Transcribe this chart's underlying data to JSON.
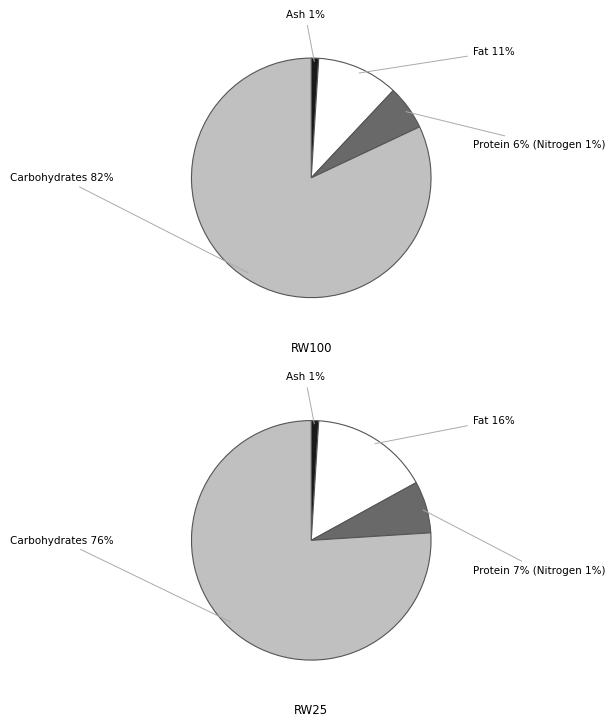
{
  "chart1": {
    "label": "RW100",
    "slices": [
      "Ash",
      "Fat",
      "Protein",
      "Carbohydrates"
    ],
    "values": [
      1,
      11,
      6,
      82
    ],
    "colors": [
      "#1a1a1a",
      "#ffffff",
      "#696969",
      "#c0c0c0"
    ],
    "labels_display": [
      "Ash 1%",
      "Fat 11%",
      "Protein 6% (Nitrogen 1%)",
      "Carbohydrates 82%"
    ],
    "startangle": 90
  },
  "chart2": {
    "label": "RW25",
    "slices": [
      "Ash",
      "Fat",
      "Protein",
      "Carbohydrates"
    ],
    "values": [
      1,
      16,
      7,
      76
    ],
    "colors": [
      "#1a1a1a",
      "#ffffff",
      "#696969",
      "#c0c0c0"
    ],
    "labels_display": [
      "Ash 1%",
      "Fat 16%",
      "Protein 7% (Nitrogen 1%)",
      "Carbohydrates 76%"
    ],
    "startangle": 90
  },
  "figure_bg": "#ffffff",
  "font_size_labels": 7.5,
  "font_size_chart_label": 8.5,
  "edge_color": "#555555"
}
